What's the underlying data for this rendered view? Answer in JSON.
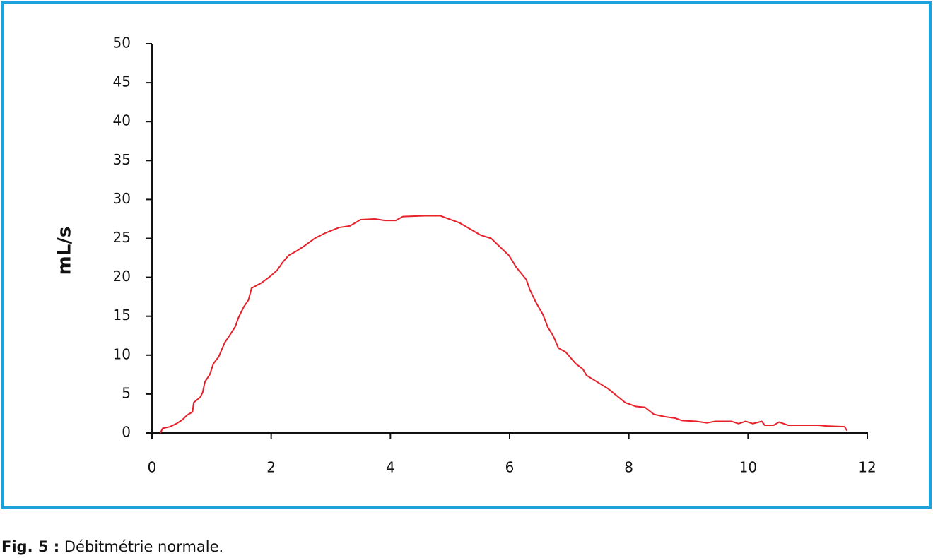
{
  "chart_data": {
    "type": "line",
    "ylabel": "mL/s",
    "x": [
      0.14,
      0.18,
      0.3,
      0.41,
      0.51,
      0.59,
      0.68,
      0.7,
      0.81,
      0.85,
      0.89,
      0.97,
      1.03,
      1.12,
      1.22,
      1.3,
      1.4,
      1.45,
      1.54,
      1.62,
      1.67,
      1.84,
      1.98,
      2.1,
      2.19,
      2.29,
      2.43,
      2.55,
      2.73,
      2.91,
      3.14,
      3.32,
      3.5,
      3.74,
      3.91,
      4.09,
      4.21,
      4.57,
      4.84,
      5.16,
      5.52,
      5.69,
      5.99,
      6.11,
      6.28,
      6.34,
      6.44,
      6.56,
      6.64,
      6.73,
      6.82,
      6.94,
      7.11,
      7.23,
      7.29,
      7.65,
      7.94,
      8.12,
      8.27,
      8.42,
      8.6,
      8.78,
      8.89,
      9.13,
      9.31,
      9.45,
      9.72,
      9.84,
      9.96,
      10.08,
      10.23,
      10.28,
      10.43,
      10.52,
      10.67,
      11.18,
      11.32,
      11.62,
      11.66
    ],
    "series": [
      {
        "color": "#e8202a",
        "values": [
          0,
          0.6,
          0.8,
          1.2,
          1.7,
          2.3,
          2.7,
          3.9,
          4.6,
          5.2,
          6.6,
          7.5,
          8.9,
          9.8,
          11.6,
          12.5,
          13.7,
          14.8,
          16.2,
          17.1,
          18.6,
          19.3,
          20.1,
          20.9,
          21.9,
          22.8,
          23.4,
          24.0,
          25.0,
          25.7,
          26.4,
          26.6,
          27.4,
          27.5,
          27.3,
          27.3,
          27.8,
          27.9,
          27.9,
          27.0,
          25.4,
          25.0,
          22.8,
          21.3,
          19.7,
          18.4,
          16.8,
          15.2,
          13.6,
          12.5,
          10.9,
          10.4,
          8.9,
          8.2,
          7.4,
          5.7,
          3.9,
          3.4,
          3.3,
          2.4,
          2.1,
          1.9,
          1.6,
          1.5,
          1.3,
          1.5,
          1.5,
          1.2,
          1.5,
          1.2,
          1.5,
          1.0,
          1.0,
          1.4,
          1.0,
          1.0,
          0.9,
          0.8,
          0.3
        ]
      }
    ],
    "xlim": [
      0,
      12
    ],
    "xticks": [
      0,
      2,
      4,
      6,
      8,
      10,
      12
    ],
    "ylim": [
      0,
      50
    ],
    "yticks": [
      0,
      5,
      10,
      15,
      20,
      25,
      30,
      35,
      40,
      45,
      50
    ],
    "caption": {
      "label": "Fig. 5 :",
      "text": "Débitmétrie normale."
    }
  }
}
